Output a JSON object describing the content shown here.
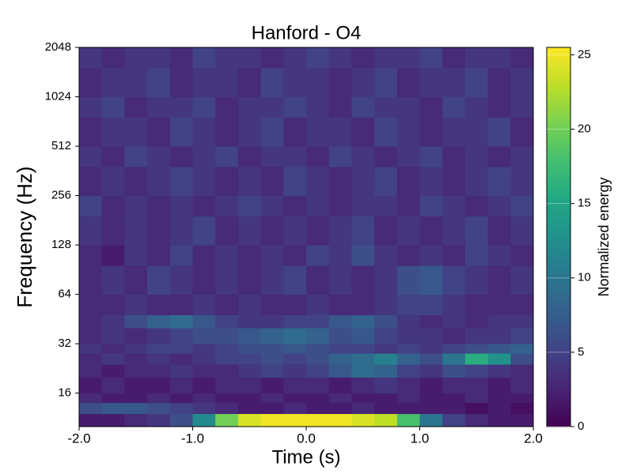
{
  "chart_data": {
    "type": "heatmap",
    "title": "Hanford - O4",
    "xlabel": "Time (s)",
    "ylabel": "Frequency (Hz)",
    "colorbar_label": "Normalized energy",
    "colormap": "viridis",
    "yscale": "log2",
    "xlim": [
      -2,
      2
    ],
    "ylim": [
      10,
      2048
    ],
    "clim": [
      0,
      25.5
    ],
    "xticks": [
      {
        "value": -2,
        "label": "-2.0"
      },
      {
        "value": -1,
        "label": "-1.0"
      },
      {
        "value": 0,
        "label": "0.0"
      },
      {
        "value": 1,
        "label": "1.0"
      },
      {
        "value": 2,
        "label": "2.0"
      }
    ],
    "yticks": [
      16,
      32,
      64,
      128,
      256,
      512,
      1024,
      2048
    ],
    "cticks": [
      0,
      5,
      10,
      15,
      20,
      25
    ],
    "xbins": [
      -2,
      -1.8,
      -1.6,
      -1.4,
      -1.2,
      -1,
      -0.8,
      -0.6,
      -0.4,
      -0.2,
      0,
      0.2,
      0.4,
      0.6,
      0.8,
      1,
      1.2,
      1.4,
      1.6,
      1.8,
      2
    ],
    "ybins": [
      10,
      12,
      14,
      16,
      20,
      24,
      28,
      32,
      40,
      48,
      64,
      96,
      128,
      192,
      256,
      384,
      512,
      768,
      1024,
      1536,
      2048
    ],
    "z": [
      [
        2,
        2,
        3,
        4,
        6,
        12,
        20,
        24,
        25,
        25,
        25,
        25,
        24,
        23,
        18,
        10,
        5,
        3,
        2,
        2
      ],
      [
        6,
        7,
        7,
        6,
        5,
        4,
        3,
        2,
        2,
        3,
        2,
        2,
        3,
        2,
        2,
        2,
        2,
        1,
        2,
        1
      ],
      [
        3,
        2,
        2,
        3,
        2,
        3,
        2,
        2,
        3,
        2,
        2,
        3,
        2,
        2,
        3,
        2,
        2,
        3,
        2,
        2
      ],
      [
        2,
        3,
        2,
        2,
        3,
        2,
        3,
        3,
        2,
        3,
        3,
        2,
        3,
        4,
        3,
        2,
        3,
        3,
        2,
        3
      ],
      [
        3,
        2,
        3,
        3,
        4,
        3,
        3,
        4,
        5,
        4,
        5,
        7,
        9,
        8,
        5,
        4,
        6,
        5,
        4,
        3
      ],
      [
        3,
        4,
        3,
        4,
        3,
        4,
        5,
        5,
        6,
        5,
        6,
        8,
        9,
        11,
        8,
        6,
        10,
        16,
        13,
        6
      ],
      [
        4,
        3,
        4,
        5,
        5,
        4,
        5,
        6,
        6,
        7,
        6,
        5,
        5,
        4,
        5,
        4,
        5,
        6,
        7,
        8
      ],
      [
        3,
        4,
        3,
        4,
        5,
        6,
        6,
        7,
        8,
        9,
        8,
        6,
        7,
        5,
        4,
        4,
        3,
        4,
        4,
        5
      ],
      [
        3,
        4,
        6,
        8,
        9,
        7,
        5,
        4,
        4,
        5,
        5,
        7,
        8,
        6,
        4,
        3,
        4,
        3,
        4,
        4
      ],
      [
        3,
        3,
        4,
        3,
        3,
        4,
        3,
        4,
        3,
        3,
        4,
        3,
        3,
        4,
        5,
        5,
        4,
        3,
        3,
        3
      ],
      [
        3,
        4,
        3,
        5,
        4,
        3,
        4,
        3,
        4,
        5,
        3,
        4,
        3,
        4,
        6,
        7,
        5,
        4,
        3,
        4
      ],
      [
        3,
        2,
        4,
        3,
        5,
        3,
        4,
        3,
        4,
        3,
        5,
        4,
        6,
        4,
        3,
        4,
        3,
        5,
        4,
        3
      ],
      [
        4,
        3,
        4,
        3,
        4,
        5,
        3,
        4,
        3,
        4,
        3,
        4,
        5,
        3,
        4,
        3,
        4,
        5,
        3,
        4
      ],
      [
        5,
        3,
        4,
        3,
        4,
        3,
        4,
        5,
        4,
        3,
        4,
        3,
        4,
        4,
        3,
        5,
        4,
        3,
        4,
        5
      ],
      [
        3,
        4,
        3,
        4,
        5,
        4,
        3,
        4,
        3,
        5,
        4,
        3,
        4,
        5,
        3,
        4,
        3,
        4,
        5,
        4
      ],
      [
        4,
        3,
        5,
        4,
        3,
        4,
        5,
        3,
        4,
        4,
        3,
        5,
        4,
        3,
        4,
        5,
        3,
        4,
        3,
        4
      ],
      [
        3,
        4,
        4,
        3,
        5,
        4,
        3,
        4,
        5,
        3,
        4,
        4,
        3,
        5,
        4,
        3,
        4,
        4,
        5,
        3
      ],
      [
        4,
        5,
        3,
        4,
        4,
        5,
        3,
        4,
        4,
        5,
        4,
        3,
        5,
        4,
        4,
        3,
        5,
        4,
        3,
        4
      ],
      [
        3,
        4,
        4,
        5,
        3,
        4,
        4,
        3,
        5,
        4,
        4,
        3,
        4,
        5,
        3,
        4,
        4,
        5,
        3,
        4
      ],
      [
        4,
        3,
        4,
        4,
        3,
        5,
        4,
        4,
        3,
        4,
        5,
        4,
        3,
        4,
        4,
        5,
        3,
        4,
        4,
        3
      ]
    ]
  }
}
